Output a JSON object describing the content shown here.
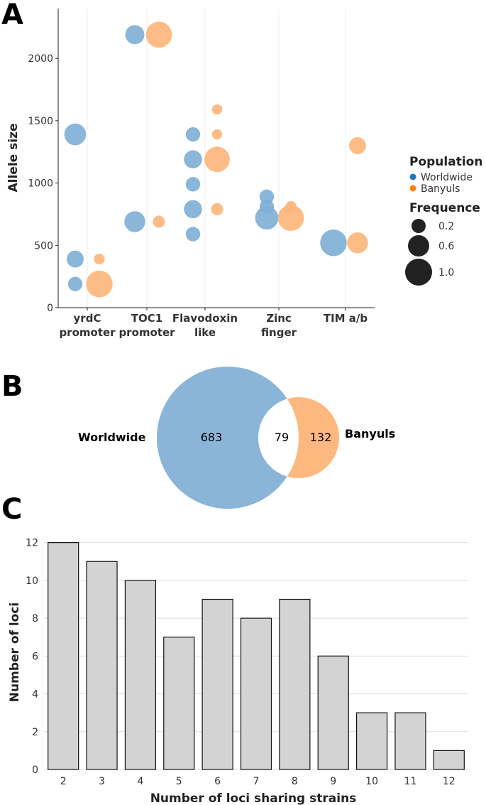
{
  "chart_data": [
    {
      "panel": "A",
      "type": "scatter",
      "title": "",
      "xlabel": "",
      "ylabel": "Allele size",
      "ylim": [
        0,
        2400
      ],
      "yticks": [
        0,
        500,
        1000,
        1500,
        2000
      ],
      "categories": [
        "yrdC\npromoter",
        "TOC1\npromoter",
        "Flavodoxin\nlike",
        "Zinc\nfinger",
        "TIM a/b"
      ],
      "series": [
        {
          "name": "Worldwide",
          "color": "#7fb0d6",
          "points": [
            {
              "category": 0,
              "y": 1390,
              "frequence": 0.5
            },
            {
              "category": 0,
              "y": 390,
              "frequence": 0.25
            },
            {
              "category": 0,
              "y": 190,
              "frequence": 0.15
            },
            {
              "category": 1,
              "y": 2190,
              "frequence": 0.35
            },
            {
              "category": 1,
              "y": 690,
              "frequence": 0.45
            },
            {
              "category": 2,
              "y": 1390,
              "frequence": 0.15
            },
            {
              "category": 2,
              "y": 1190,
              "frequence": 0.3
            },
            {
              "category": 2,
              "y": 990,
              "frequence": 0.15
            },
            {
              "category": 2,
              "y": 790,
              "frequence": 0.3
            },
            {
              "category": 2,
              "y": 590,
              "frequence": 0.15
            },
            {
              "category": 3,
              "y": 890,
              "frequence": 0.15
            },
            {
              "category": 3,
              "y": 810,
              "frequence": 0.15
            },
            {
              "category": 3,
              "y": 720,
              "frequence": 0.6
            },
            {
              "category": 4,
              "y": 520,
              "frequence": 0.85
            }
          ]
        },
        {
          "name": "Banyuls",
          "color": "#fdb57b",
          "points": [
            {
              "category": 0,
              "y": 390,
              "frequence": 0.05
            },
            {
              "category": 0,
              "y": 190,
              "frequence": 0.85
            },
            {
              "category": 1,
              "y": 2190,
              "frequence": 0.8
            },
            {
              "category": 1,
              "y": 690,
              "frequence": 0.08
            },
            {
              "category": 2,
              "y": 1590,
              "frequence": 0.04
            },
            {
              "category": 2,
              "y": 1390,
              "frequence": 0.04
            },
            {
              "category": 2,
              "y": 1190,
              "frequence": 0.75
            },
            {
              "category": 2,
              "y": 790,
              "frequence": 0.08
            },
            {
              "category": 3,
              "y": 810,
              "frequence": 0.06
            },
            {
              "category": 3,
              "y": 720,
              "frequence": 0.8
            },
            {
              "category": 4,
              "y": 1300,
              "frequence": 0.25
            },
            {
              "category": 4,
              "y": 520,
              "frequence": 0.45
            }
          ]
        }
      ],
      "legend": {
        "population_title": "Population",
        "population_items": [
          {
            "label": "Worldwide",
            "color": "#1f77b4"
          },
          {
            "label": "Banyuls",
            "color": "#ff7f0e"
          }
        ],
        "frequence_title": "Frequence",
        "frequence_items": [
          {
            "label": "0.2",
            "value": 0.2
          },
          {
            "label": "0.6",
            "value": 0.6
          },
          {
            "label": "1.0",
            "value": 1.0
          }
        ],
        "placement": "right"
      }
    },
    {
      "panel": "B",
      "type": "venn",
      "sets": [
        {
          "label": "Worldwide",
          "only": "683",
          "size": 762,
          "color": "#8ab5d8"
        },
        {
          "label": "Banyuls",
          "only": "132",
          "size": 211,
          "color": "#fdb880"
        }
      ],
      "intersection": "79"
    },
    {
      "panel": "C",
      "type": "bar",
      "title": "",
      "xlabel": "Number of loci sharing strains",
      "ylabel": "Number of loci",
      "categories": [
        "2",
        "3",
        "4",
        "5",
        "6",
        "7",
        "8",
        "9",
        "10",
        "11",
        "12"
      ],
      "values": [
        12,
        11,
        10,
        7,
        9,
        8,
        9,
        6,
        3,
        3,
        1
      ],
      "ylim": [
        0,
        12.4
      ],
      "yticks": [
        0,
        2,
        4,
        6,
        8,
        10,
        12
      ],
      "bar_color": "#d3d3d3",
      "grid": true
    }
  ],
  "panel_labels": [
    "A",
    "B",
    "C"
  ]
}
